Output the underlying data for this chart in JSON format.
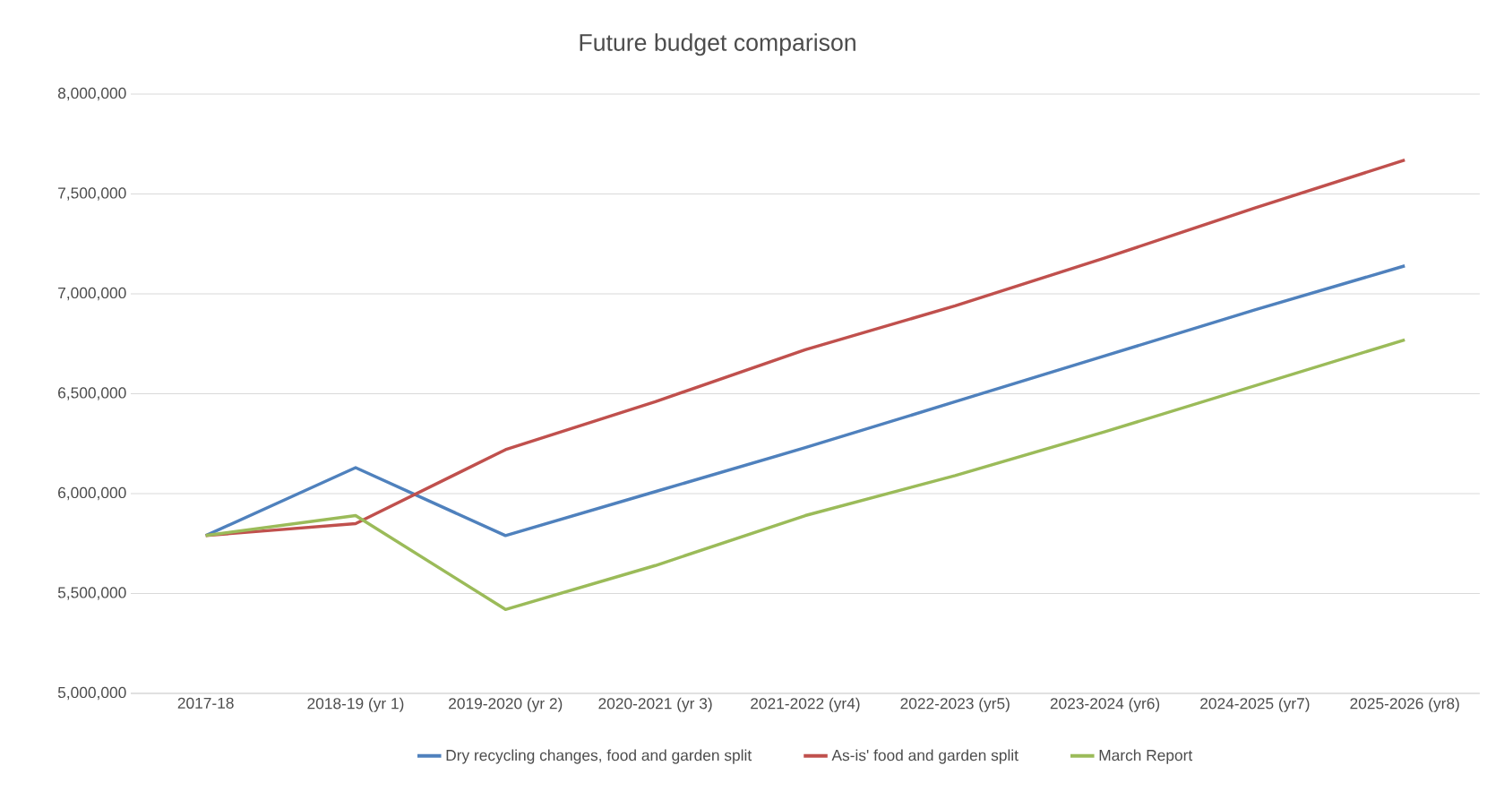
{
  "chart_data": {
    "type": "line",
    "title": "Future budget comparison",
    "categories": [
      "2017-18",
      "2018-19 (yr 1)",
      "2019-2020 (yr 2)",
      "2020-2021 (yr 3)",
      "2021-2022 (yr4)",
      "2022-2023 (yr5)",
      "2023-2024 (yr6)",
      "2024-2025 (yr7)",
      "2025-2026 (yr8)"
    ],
    "series": [
      {
        "name": "Dry recycling changes, food and garden split",
        "color": "#4f81bd",
        "values": [
          5790000,
          6130000,
          5790000,
          6010000,
          6230000,
          6460000,
          6690000,
          6920000,
          7140000
        ]
      },
      {
        "name": "As-is' food and garden split",
        "color": "#c0504d",
        "values": [
          5790000,
          5850000,
          6220000,
          6460000,
          6720000,
          6940000,
          7180000,
          7430000,
          7670000
        ]
      },
      {
        "name": "March Report",
        "color": "#9bbb59",
        "values": [
          5790000,
          5890000,
          5420000,
          5640000,
          5890000,
          6090000,
          6310000,
          6540000,
          6770000
        ]
      }
    ],
    "ylim": [
      5000000,
      8000000
    ],
    "yticks": [
      {
        "value": 5000000,
        "label": "5,000,000"
      },
      {
        "value": 5500000,
        "label": "5,500,000"
      },
      {
        "value": 6000000,
        "label": "6,000,000"
      },
      {
        "value": 6500000,
        "label": "6,500,000"
      },
      {
        "value": 7000000,
        "label": "7,000,000"
      },
      {
        "value": 7500000,
        "label": "7,500,000"
      },
      {
        "value": 8000000,
        "label": "8,000,000"
      }
    ],
    "grid": "y",
    "legend": "bottom",
    "marker": "none",
    "line_style": "solid"
  }
}
